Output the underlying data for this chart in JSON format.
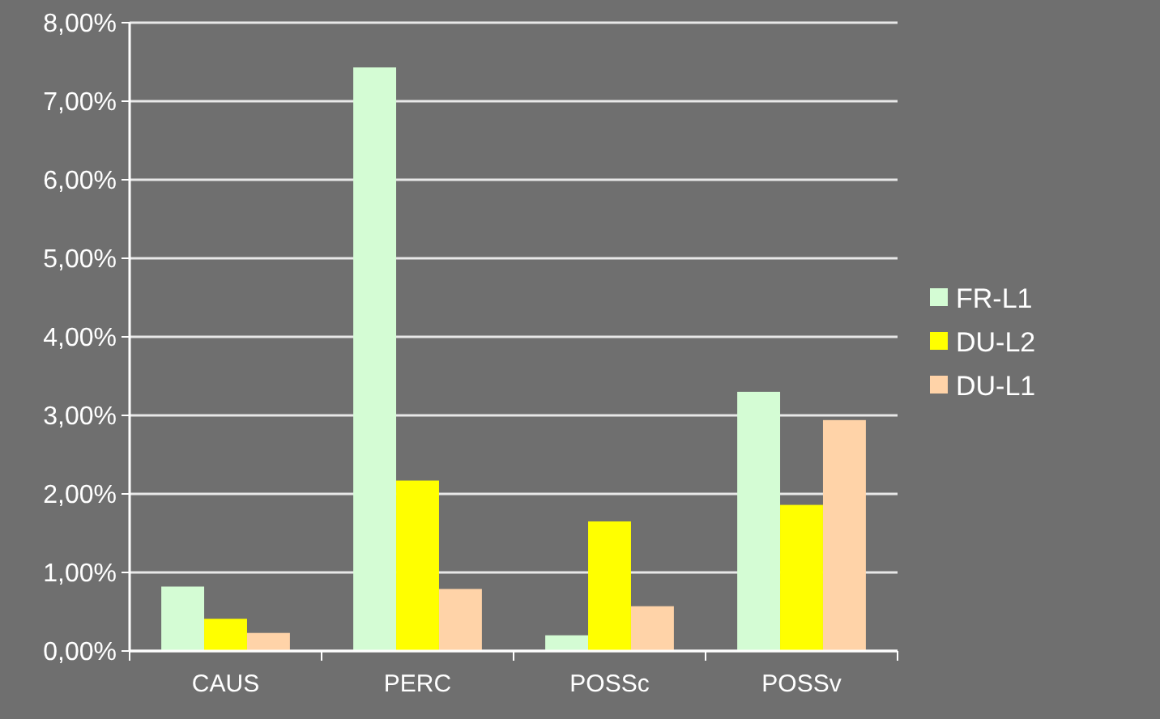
{
  "chart_data": {
    "type": "bar",
    "categories": [
      "CAUS",
      "PERC",
      "POSSc",
      "POSSv"
    ],
    "series": [
      {
        "name": "FR-L1",
        "color": "#d4fcd4",
        "values": [
          0.82,
          7.43,
          0.2,
          3.3
        ]
      },
      {
        "name": "DU-L2",
        "color": "#ffff00",
        "values": [
          0.41,
          2.17,
          1.65,
          1.86
        ]
      },
      {
        "name": "DU-L1",
        "color": "#ffd3a8",
        "values": [
          0.23,
          0.79,
          0.57,
          2.94
        ]
      }
    ],
    "ylim": [
      0,
      8
    ],
    "yticks": [
      {
        "value": 0,
        "label": "0,00%"
      },
      {
        "value": 1,
        "label": "1,00%"
      },
      {
        "value": 2,
        "label": "2,00%"
      },
      {
        "value": 3,
        "label": "3,00%"
      },
      {
        "value": 4,
        "label": "4,00%"
      },
      {
        "value": 5,
        "label": "5,00%"
      },
      {
        "value": 6,
        "label": "6,00%"
      },
      {
        "value": 7,
        "label": "7,00%"
      },
      {
        "value": 8,
        "label": "8,00%"
      }
    ],
    "grid": "y",
    "legend": "right"
  }
}
